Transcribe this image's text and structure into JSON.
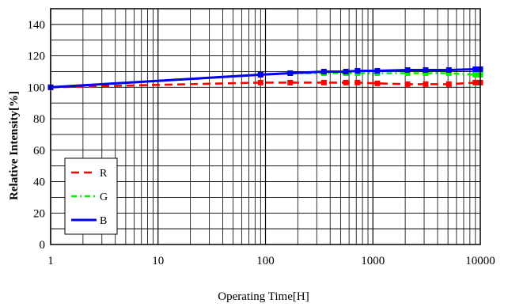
{
  "chart_data": {
    "type": "line",
    "xscale": "log",
    "xlim": [
      1,
      10000
    ],
    "ylim": [
      0,
      150
    ],
    "grid": true,
    "xlabel": "Operating Time[H]",
    "ylabel": "Relative Intensity[%]",
    "x_tick_labels": [
      "1",
      "10",
      "100",
      "1000",
      "10000"
    ],
    "y_tick_labels": [
      "0",
      "20",
      "40",
      "60",
      "80",
      "100",
      "120",
      "140"
    ],
    "legend_position": "lower-left",
    "series": [
      {
        "name": "R",
        "color": "#ff0000",
        "style": "dashed",
        "x": [
          1,
          90,
          170,
          350,
          560,
          720,
          1100,
          2100,
          3100,
          5100,
          9000,
          10000
        ],
        "y": [
          100,
          103,
          103,
          103,
          103,
          103,
          102.5,
          102,
          102,
          102,
          103,
          103
        ]
      },
      {
        "name": "G",
        "color": "#00ee00",
        "style": "dashdot",
        "x": [
          1,
          90,
          170,
          350,
          560,
          720,
          1100,
          2100,
          3100,
          5100,
          9000,
          10000
        ],
        "y": [
          100,
          108,
          109,
          109,
          109,
          109,
          109,
          109,
          109,
          109,
          108,
          108
        ]
      },
      {
        "name": "B",
        "color": "#0000ee",
        "style": "solid",
        "x": [
          1,
          90,
          170,
          350,
          560,
          720,
          1100,
          2100,
          3100,
          5100,
          9000,
          10000
        ],
        "y": [
          100,
          108,
          109,
          110,
          110,
          110.5,
          110.5,
          111,
          111,
          111,
          111.5,
          111.5
        ]
      }
    ]
  }
}
